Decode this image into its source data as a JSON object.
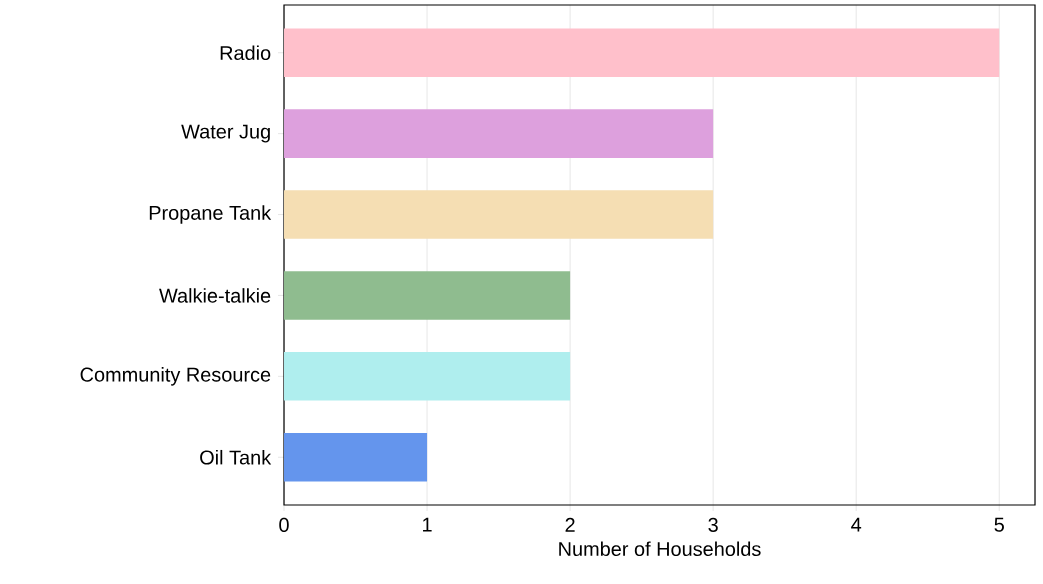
{
  "chart_data": {
    "type": "bar",
    "orientation": "horizontal",
    "xlabel": "Number of Households",
    "categories": [
      "Radio",
      "Water Jug",
      "Propane Tank",
      "Walkie-talkie",
      "Community Resource",
      "Oil Tank"
    ],
    "values": [
      5,
      3,
      3,
      2,
      2,
      1
    ],
    "colors": [
      "#ffc0cb",
      "#dda0dd",
      "#f5deb3",
      "#8fbc8f",
      "#afeeee",
      "#6495ed"
    ],
    "xlim": [
      0,
      5.25
    ],
    "xticks": [
      0,
      1,
      2,
      3,
      4,
      5
    ],
    "grid": "x"
  }
}
